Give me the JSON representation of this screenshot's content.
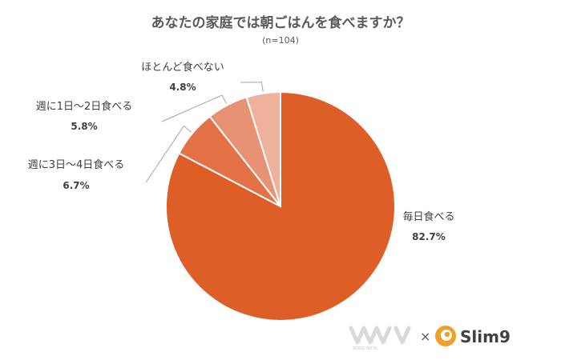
{
  "chart_data": {
    "type": "pie",
    "title": "あなたの家庭では朝ごはんを食べますか？",
    "subtitle": "(n=104)",
    "slices": [
      {
        "label": "毎日食べる",
        "value": 82.7,
        "value_label": "82.7%",
        "color": "#DE5E27"
      },
      {
        "label": "週に3日〜4日食べる",
        "value": 6.7,
        "value_label": "6.7%",
        "color": "#E27145"
      },
      {
        "label": "週に1日〜2日食べる",
        "value": 5.8,
        "value_label": "5.8%",
        "color": "#E89275"
      },
      {
        "label": "ほとんど食べない",
        "value": 4.8,
        "value_label": "4.8%",
        "color": "#EEB29C"
      }
    ],
    "start": "12 o'clock",
    "direction": "clockwise",
    "legend": "none (direct labels)"
  },
  "footer": {
    "logo_left_text": "VOICE NOTE",
    "times_sign": "×",
    "logo_right_text": "Slim9",
    "logo_right_color": "#F0A02A"
  }
}
